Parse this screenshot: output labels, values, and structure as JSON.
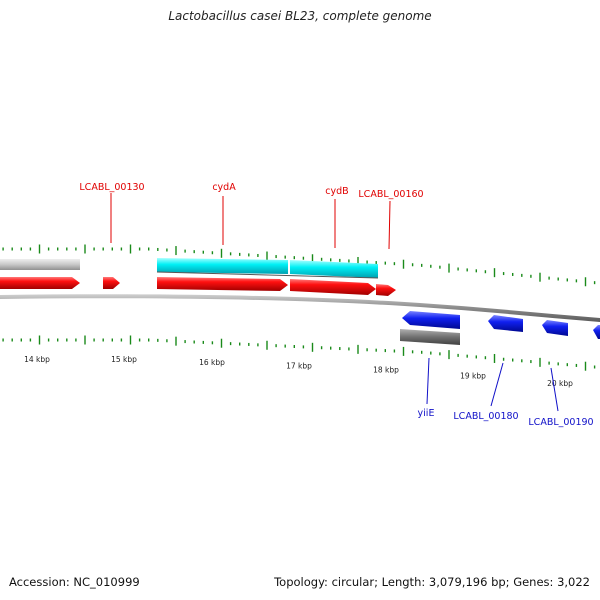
{
  "title": "Lactobacillus casei BL23, complete genome",
  "footer": {
    "accession": "Accession: NC_010999",
    "summary": "Topology: circular; Length: 3,079,196 bp; Genes: 3,022"
  },
  "colors": {
    "forward_cds": "#e8000a",
    "forward_rna_or_gene": "#00e5ee",
    "grey_feature": "#c8c8c8",
    "reverse_cds": "#0a14e6",
    "reverse_gene": "#6a6a6a",
    "backbone": "#8c8c8c",
    "tick": "#1a8a1a",
    "label_forward": "#e00000",
    "label_reverse": "#1010c8"
  },
  "scale": {
    "labels": [
      "14 kbp",
      "15 kbp",
      "16 kbp",
      "17 kbp",
      "18 kbp",
      "19 kbp",
      "20 kbp"
    ]
  },
  "features": {
    "forward_labels": [
      "LCABL_00130",
      "cydA",
      "cydB",
      "LCABL_00160"
    ],
    "reverse_labels": [
      "yiiE",
      "LCABL_00180",
      "LCABL_00190"
    ]
  }
}
